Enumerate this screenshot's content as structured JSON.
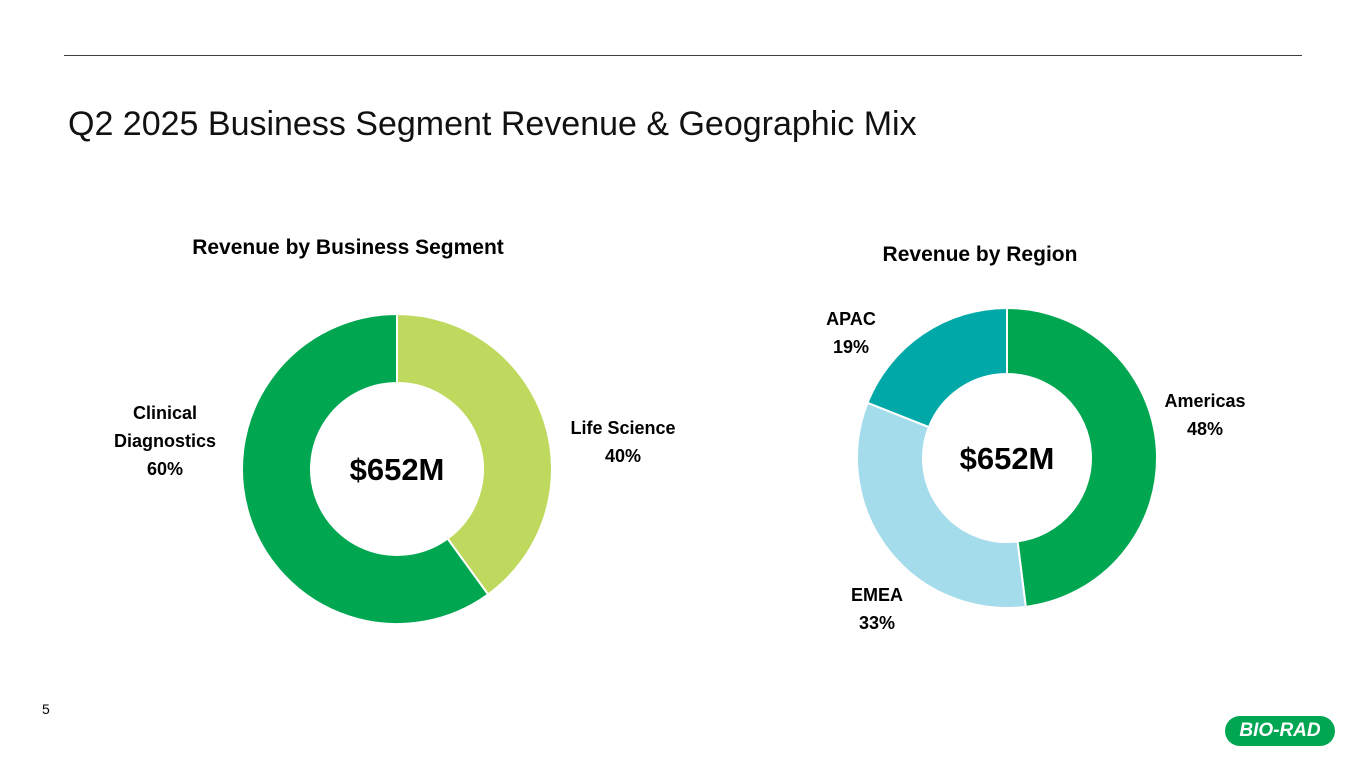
{
  "page": {
    "title": "Q2 2025 Business Segment Revenue & Geographic Mix",
    "page_number": "5",
    "logo_text": "BIO-RAD"
  },
  "chart_data": [
    {
      "type": "pie",
      "variant": "donut",
      "title": "Revenue by Business Segment",
      "center_label": "$652M",
      "categories": [
        "Life Science",
        "Clinical Diagnostics"
      ],
      "values": [
        40,
        60
      ],
      "label_lines": [
        [
          "Life Science",
          "40%"
        ],
        [
          "Clinical",
          "Diagnostics",
          "60%"
        ]
      ],
      "colors": [
        "#bfd95e",
        "#00a650"
      ]
    },
    {
      "type": "pie",
      "variant": "donut",
      "title": "Revenue by Region",
      "center_label": "$652M",
      "categories": [
        "Americas",
        "EMEA",
        "APAC"
      ],
      "values": [
        48,
        33,
        19
      ],
      "label_lines": [
        [
          "Americas",
          "48%"
        ],
        [
          "EMEA",
          "33%"
        ],
        [
          "APAC",
          "19%"
        ]
      ],
      "colors": [
        "#00a650",
        "#a5dceb",
        "#00a8a8"
      ]
    }
  ]
}
